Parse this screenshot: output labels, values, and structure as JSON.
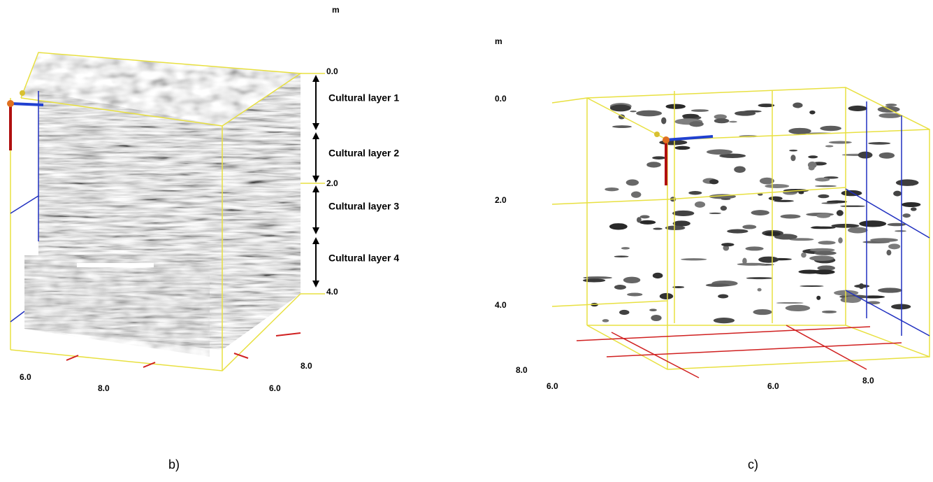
{
  "panels": [
    {
      "caption": "b)",
      "depth_unit": "m",
      "depth_labels": [
        "0.0",
        "2.0",
        "4.0"
      ],
      "layer_labels": [
        "Cultural layer 1",
        "Cultural layer 2",
        "Cultural layer 3",
        "Cultural layer 4"
      ],
      "horizontal_labels": [
        "6.0",
        "8.0",
        "8.0",
        "6.0"
      ]
    },
    {
      "caption": "c)",
      "depth_unit": "m",
      "depth_labels": [
        "0.0",
        "2.0",
        "4.0"
      ],
      "horizontal_labels": [
        "8.0",
        "6.0",
        "6.0",
        "8.0"
      ]
    }
  ]
}
